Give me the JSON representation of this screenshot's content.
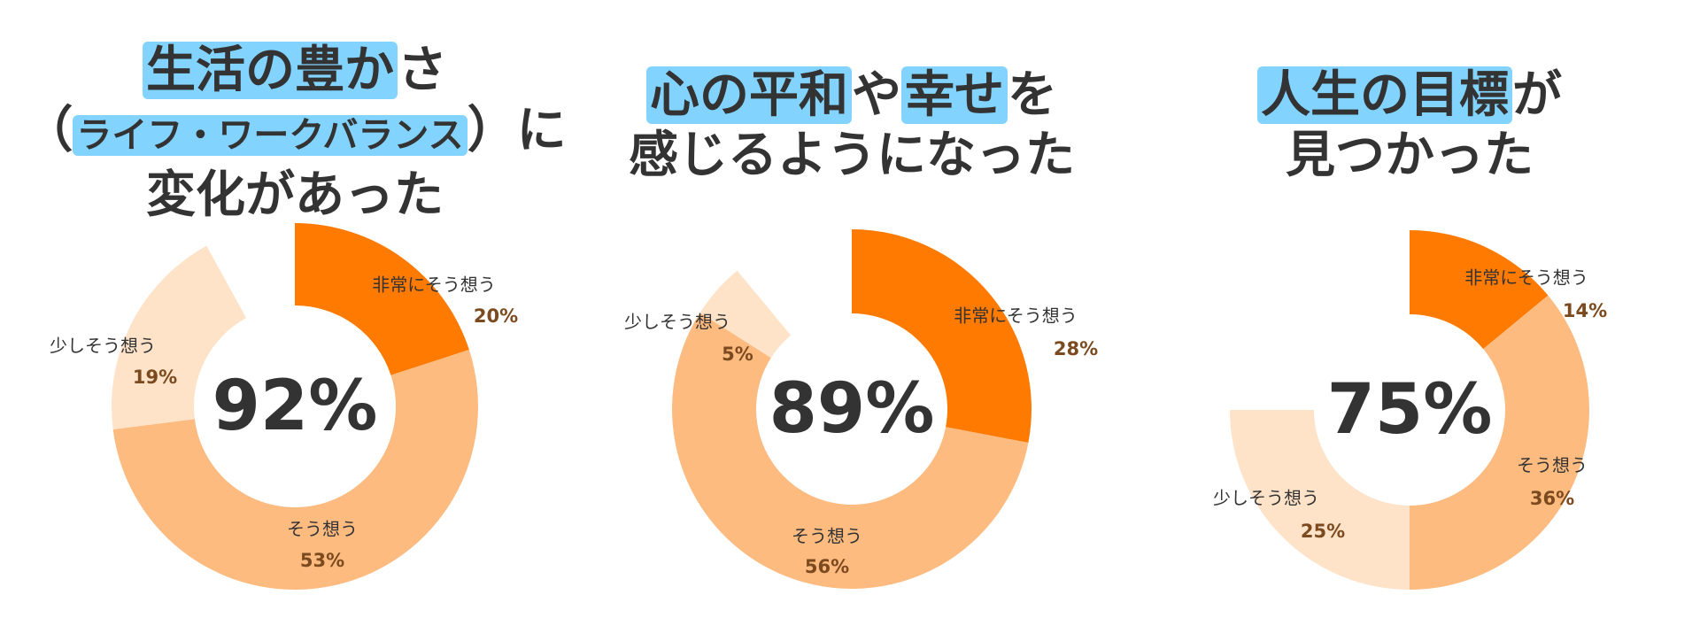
{
  "colors": {
    "very": "#FF7A00",
    "agree": "#FDBB80",
    "slightly": "#FEE3C9",
    "highlight": "#82D4FF",
    "percent_text": "#7B4A1E"
  },
  "chart_data": [
    {
      "type": "donut",
      "title_lines": [
        [
          {
            "text": "生活の豊か",
            "highlight": true
          },
          {
            "text": "さ",
            "highlight": false
          }
        ],
        [
          {
            "text": "（",
            "highlight": false
          },
          {
            "text": "ライフ・ワークバランス",
            "highlight": true,
            "small": true
          },
          {
            "text": "）に",
            "highlight": false
          }
        ],
        [
          {
            "text": "変化があった",
            "highlight": false
          }
        ]
      ],
      "center_label": "92%",
      "slices": [
        {
          "label": "非常にそう想う",
          "value": 20,
          "value_label": "20%",
          "color": "#FF7A00"
        },
        {
          "label": "そう想う",
          "value": 53,
          "value_label": "53%",
          "color": "#FDBB80"
        },
        {
          "label": "少しそう想う",
          "value": 19,
          "value_label": "19%",
          "color": "#FEE3C9"
        }
      ]
    },
    {
      "type": "donut",
      "title_lines": [
        [
          {
            "text": "心の平和",
            "highlight": true
          },
          {
            "text": "や",
            "highlight": false
          },
          {
            "text": "幸せ",
            "highlight": true
          },
          {
            "text": "を",
            "highlight": false
          }
        ],
        [
          {
            "text": "感じるようになった",
            "highlight": false
          }
        ]
      ],
      "center_label": "89%",
      "slices": [
        {
          "label": "非常にそう想う",
          "value": 28,
          "value_label": "28%",
          "color": "#FF7A00"
        },
        {
          "label": "そう想う",
          "value": 56,
          "value_label": "56%",
          "color": "#FDBB80"
        },
        {
          "label": "少しそう想う",
          "value": 5,
          "value_label": "5%",
          "color": "#FEE3C9"
        }
      ]
    },
    {
      "type": "donut",
      "title_lines": [
        [
          {
            "text": "人生の目標",
            "highlight": true
          },
          {
            "text": "が",
            "highlight": false
          }
        ],
        [
          {
            "text": "見つかった",
            "highlight": false
          }
        ]
      ],
      "center_label": "75%",
      "slices": [
        {
          "label": "非常にそう想う",
          "value": 14,
          "value_label": "14%",
          "color": "#FF7A00"
        },
        {
          "label": "そう想う",
          "value": 36,
          "value_label": "36%",
          "color": "#FDBB80"
        },
        {
          "label": "少しそう想う",
          "value": 25,
          "value_label": "25%",
          "color": "#FEE3C9"
        }
      ]
    }
  ]
}
